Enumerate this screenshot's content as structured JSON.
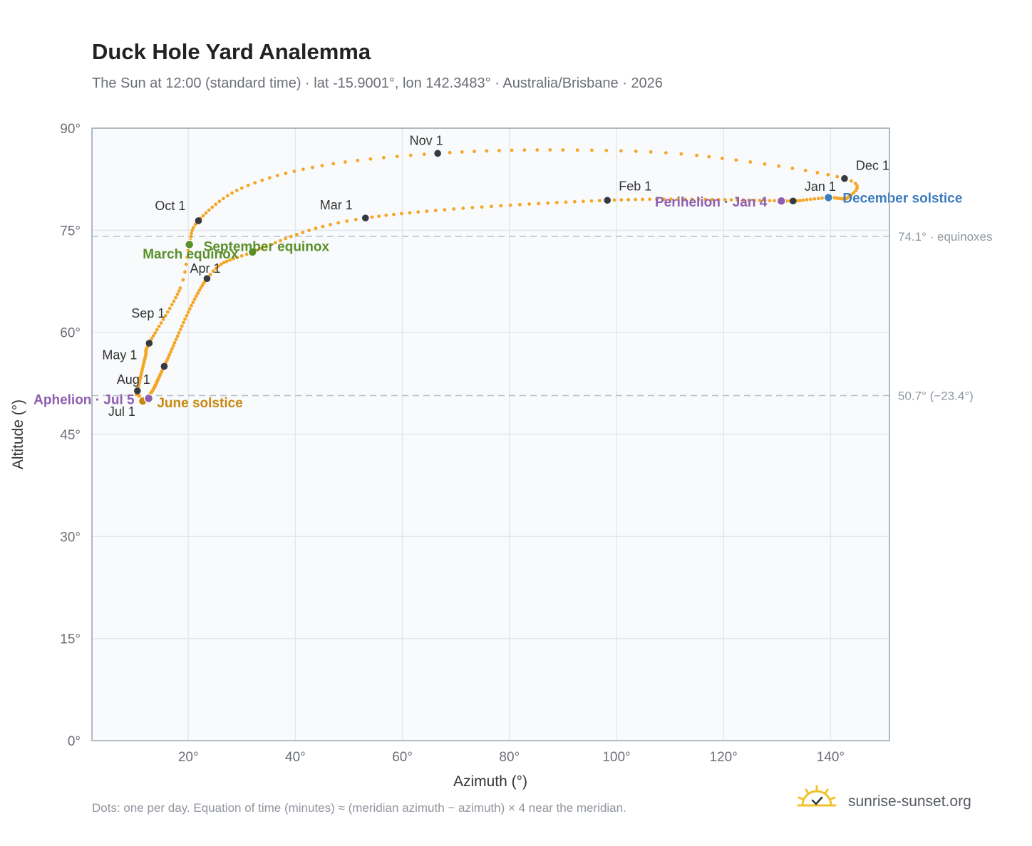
{
  "header": {
    "title": "Duck Hole Yard Analemma",
    "subtitle": "The Sun at 12:00 (standard time) · lat -15.9001°, lon 142.3483° · Australia/Brisbane · 2026"
  },
  "footer": {
    "note": "Dots: one per day. Equation of time (minutes) ≈ (meridian azimuth − azimuth) × 4 near the meridian.",
    "brand": "sunrise-sunset.org"
  },
  "colors": {
    "curve": "#f5a623",
    "month_marker": "#343a40",
    "equinox": "#5a8f29",
    "june_solstice": "#c68a12",
    "december_solstice": "#3b7bbf",
    "apsis": "#8e5fb0",
    "plot_bg": "#f8fafc",
    "grid": "#e4e8ee",
    "frame": "#9aa3ae",
    "reference_line": "#b3c0c8"
  },
  "chart_data": {
    "type": "scatter",
    "title": "Duck Hole Yard Analemma",
    "xlabel": "Azimuth (°)",
    "ylabel": "Altitude (°)",
    "xlim": [
      2,
      151
    ],
    "ylim": [
      0,
      90
    ],
    "x_ticks": [
      20,
      40,
      60,
      80,
      100,
      120,
      140
    ],
    "x_tick_labels": [
      "20°",
      "40°",
      "60°",
      "80°",
      "100°",
      "120°",
      "140°"
    ],
    "y_ticks": [
      0,
      15,
      30,
      45,
      60,
      75,
      90
    ],
    "y_tick_labels": [
      "0°",
      "15°",
      "30°",
      "45°",
      "60°",
      "75°",
      "90°"
    ],
    "grid": true,
    "reference_lines": [
      {
        "y": 74.1,
        "label": "74.1° · equinoxes"
      },
      {
        "y": 50.7,
        "label": "50.7° (−23.4°)"
      }
    ],
    "path_anchors": [
      {
        "day": 1,
        "az": 133.0,
        "alt": 79.3
      },
      {
        "day": 32,
        "az": 98.3,
        "alt": 79.4
      },
      {
        "day": 60,
        "az": 53.1,
        "alt": 76.8
      },
      {
        "day": 78,
        "az": 32.0,
        "alt": 71.8
      },
      {
        "day": 91,
        "az": 23.5,
        "alt": 67.9
      },
      {
        "day": 121,
        "az": 15.5,
        "alt": 55.0
      },
      {
        "day": 141,
        "az": 13.3,
        "alt": 51.4
      },
      {
        "day": 171,
        "az": 11.5,
        "alt": 49.9
      },
      {
        "day": 181,
        "az": 11.7,
        "alt": 49.8
      },
      {
        "day": 196,
        "az": 10.5,
        "alt": 51.0
      },
      {
        "day": 212,
        "az": 10.5,
        "alt": 51.4
      },
      {
        "day": 230,
        "az": 12.0,
        "alt": 56.5
      },
      {
        "day": 243,
        "az": 12.7,
        "alt": 58.4
      },
      {
        "day": 260,
        "az": 18.5,
        "alt": 66.5
      },
      {
        "day": 266,
        "az": 20.2,
        "alt": 72.9
      },
      {
        "day": 273,
        "az": 21.9,
        "alt": 76.4
      },
      {
        "day": 285,
        "az": 30.0,
        "alt": 81.2
      },
      {
        "day": 295,
        "az": 45.0,
        "alt": 84.5
      },
      {
        "day": 304,
        "az": 66.6,
        "alt": 86.3
      },
      {
        "day": 314,
        "az": 90.0,
        "alt": 86.8
      },
      {
        "day": 323,
        "az": 115.0,
        "alt": 86.0
      },
      {
        "day": 335,
        "az": 142.6,
        "alt": 82.6
      },
      {
        "day": 344,
        "az": 143.2,
        "alt": 79.8
      },
      {
        "day": 355,
        "az": 139.6,
        "alt": 79.8
      },
      {
        "day": 365,
        "az": 133.4,
        "alt": 79.3
      }
    ],
    "month_markers": [
      {
        "label": "Jan 1",
        "az": 133.0,
        "alt": 79.3
      },
      {
        "label": "Feb 1",
        "az": 98.3,
        "alt": 79.4
      },
      {
        "label": "Mar 1",
        "az": 53.1,
        "alt": 76.8
      },
      {
        "label": "Apr 1",
        "az": 23.5,
        "alt": 67.9
      },
      {
        "label": "May 1",
        "az": 15.5,
        "alt": 55.0
      },
      {
        "label": "Jul 1",
        "az": 11.7,
        "alt": 49.8
      },
      {
        "label": "Aug 1",
        "az": 10.5,
        "alt": 51.4
      },
      {
        "label": "Sep 1",
        "az": 12.7,
        "alt": 58.4
      },
      {
        "label": "Oct 1",
        "az": 21.9,
        "alt": 76.4
      },
      {
        "label": "Nov 1",
        "az": 66.6,
        "alt": 86.3
      },
      {
        "label": "Dec 1",
        "az": 142.6,
        "alt": 82.6
      }
    ],
    "events": [
      {
        "label": "March equinox",
        "az": 32.0,
        "alt": 71.8,
        "color": "#5a8f29"
      },
      {
        "label": "September equinox",
        "az": 20.2,
        "alt": 72.9,
        "color": "#5a8f29"
      },
      {
        "label": "June solstice",
        "az": 11.5,
        "alt": 49.9,
        "color": "#c68a12"
      },
      {
        "label": "December solstice",
        "az": 139.6,
        "alt": 79.8,
        "color": "#3b7bbf"
      },
      {
        "label": "Perihelion · Jan 4",
        "az": 130.8,
        "alt": 79.3,
        "color": "#8e5fb0"
      },
      {
        "label": "Aphelion · Jul 5",
        "az": 12.6,
        "alt": 50.3,
        "color": "#8e5fb0"
      }
    ]
  }
}
